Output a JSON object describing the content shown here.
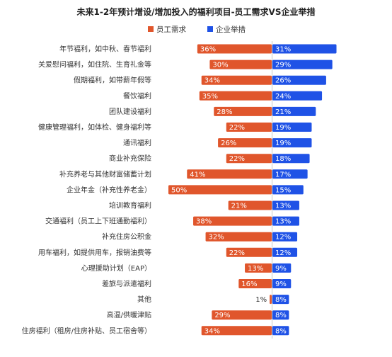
{
  "chart_data": {
    "type": "bar",
    "title": "未来1-2年预计增设/增加投入的福利项目-员工需求VS企业举措",
    "categories": [
      "年节福利，如中秋、春节福利",
      "关爱慰问福利，如住院、生育礼金等",
      "假期福利，如带薪年假等",
      "餐饮福利",
      "团队建设福利",
      "健康管理福利，如体检、健身福利等",
      "通讯福利",
      "商业补充保险",
      "补充养老与其他财富储蓄计划",
      "企业年金（补充性养老金）",
      "培训教育福利",
      "交通福利（员工上下班通勤福利）",
      "补充住房公积金",
      "用车福利，如提供用车，报销油费等",
      "心理援助计划（EAP）",
      "差旅与派遣福利",
      "其他",
      "高温/供暖津贴",
      "住房福利（租房/住房补贴、员工宿舍等）"
    ],
    "series": [
      {
        "name": "员工需求",
        "color": "#e0562c",
        "values": [
          36,
          30,
          34,
          35,
          28,
          22,
          26,
          22,
          41,
          50,
          21,
          38,
          32,
          22,
          13,
          16,
          1,
          29,
          34
        ],
        "labels": [
          "36%",
          "30%",
          "34%",
          "35%",
          "28%",
          "22%",
          "26%",
          "22%",
          "41%",
          "50%",
          "21%",
          "38%",
          "32%",
          "22%",
          "13%",
          "16%",
          "1%",
          "29%",
          "34%"
        ]
      },
      {
        "name": "企业举措",
        "color": "#1f52e6",
        "values": [
          31,
          29,
          26,
          24,
          21,
          19,
          19,
          18,
          17,
          15,
          13,
          13,
          12,
          12,
          9,
          9,
          8,
          8,
          8
        ],
        "labels": [
          "31%",
          "29%",
          "26%",
          "24%",
          "21%",
          "19%",
          "19%",
          "18%",
          "17%",
          "15%",
          "13%",
          "13%",
          "12%",
          "12%",
          "9%",
          "9%",
          "8%",
          "8%",
          "8%"
        ]
      }
    ],
    "legend_position": "top-center",
    "grid": false
  }
}
